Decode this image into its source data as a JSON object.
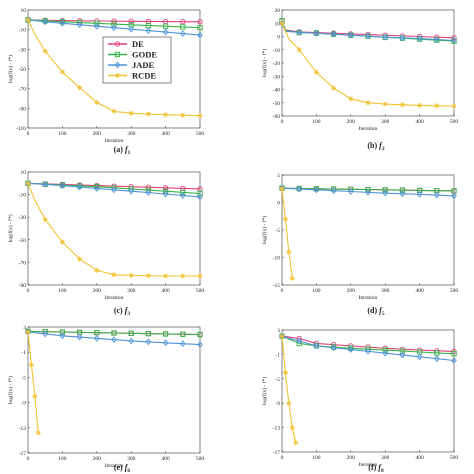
{
  "legend": [
    {
      "name": "DE",
      "color": "#e0417a",
      "marker": "circle"
    },
    {
      "name": "GODE",
      "color": "#36b34a",
      "marker": "square"
    },
    {
      "name": "JADE",
      "color": "#4f93d8",
      "marker": "diamond"
    },
    {
      "name": "RCDE",
      "color": "#f1c232",
      "marker": "star"
    }
  ],
  "chart_data": [
    {
      "type": "line",
      "caption_prefix": "(a) ",
      "caption_var": "f",
      "caption_sub": "1",
      "xlabel": "Iteration",
      "ylabel": "log(f(x) - f*)",
      "xlim": [
        0,
        500
      ],
      "ylim": [
        -110,
        10
      ],
      "xticks": [
        0,
        100,
        200,
        300,
        400,
        500
      ],
      "yticks": [
        10,
        -10,
        -30,
        -50,
        -70,
        -90,
        -110
      ],
      "series": [
        {
          "name": "DE",
          "x": [
            0,
            50,
            100,
            200,
            300,
            400,
            500
          ],
          "y": [
            0,
            -0.5,
            -0.8,
            -1.2,
            -1.5,
            -1.8,
            -2
          ]
        },
        {
          "name": "GODE",
          "x": [
            0,
            50,
            100,
            200,
            300,
            400,
            500
          ],
          "y": [
            0,
            -1,
            -2,
            -3.5,
            -5,
            -6.5,
            -8
          ]
        },
        {
          "name": "JADE",
          "x": [
            0,
            50,
            100,
            200,
            300,
            400,
            500
          ],
          "y": [
            0,
            -2,
            -3.5,
            -6.5,
            -9.5,
            -12.5,
            -15.5
          ]
        },
        {
          "name": "RCDE",
          "x": [
            0,
            20,
            50,
            100,
            150,
            200,
            250,
            300,
            400,
            500
          ],
          "y": [
            0,
            -15,
            -32,
            -53,
            -69,
            -84,
            -93,
            -95,
            -96.5,
            -97.5
          ]
        }
      ]
    },
    {
      "type": "line",
      "caption_prefix": "(b) ",
      "caption_var": "f",
      "caption_sub": "2",
      "xlabel": "Iteration",
      "ylabel": "log(f(x) - f*)",
      "xlim": [
        0,
        500
      ],
      "ylim": [
        -60,
        20
      ],
      "xticks": [
        0,
        100,
        200,
        300,
        400,
        500
      ],
      "yticks": [
        20,
        10,
        0,
        -10,
        -20,
        -30,
        -40,
        -50,
        -60
      ],
      "series": [
        {
          "name": "DE",
          "x": [
            0,
            10,
            50,
            100,
            200,
            300,
            400,
            500
          ],
          "y": [
            12,
            5,
            3.5,
            3,
            2,
            1,
            0,
            -1
          ]
        },
        {
          "name": "GODE",
          "x": [
            0,
            10,
            50,
            100,
            200,
            300,
            400,
            500
          ],
          "y": [
            12,
            4.5,
            3,
            2.5,
            1,
            -0.5,
            -2,
            -3.5
          ]
        },
        {
          "name": "JADE",
          "x": [
            0,
            10,
            50,
            100,
            200,
            300,
            400,
            500
          ],
          "y": [
            10,
            4,
            3,
            2.5,
            1,
            -0.5,
            -1.5,
            -3
          ]
        },
        {
          "name": "RCDE",
          "x": [
            0,
            20,
            50,
            100,
            150,
            200,
            250,
            300,
            400,
            500
          ],
          "y": [
            10,
            -2,
            -10,
            -27,
            -39,
            -47,
            -50,
            -51,
            -52,
            -52.5
          ]
        }
      ]
    },
    {
      "type": "line",
      "caption_prefix": "(c) ",
      "caption_var": "f",
      "caption_sub": "3",
      "xlabel": "Iteration",
      "ylabel": "log(f(x) - f*)",
      "xlim": [
        0,
        500
      ],
      "ylim": [
        -90,
        10
      ],
      "xticks": [
        0,
        100,
        200,
        300,
        400,
        500
      ],
      "yticks": [
        10,
        -10,
        -30,
        -50,
        -70,
        -90
      ],
      "series": [
        {
          "name": "DE",
          "x": [
            0,
            100,
            200,
            300,
            400,
            500
          ],
          "y": [
            0,
            -1,
            -2,
            -3,
            -4,
            -5
          ]
        },
        {
          "name": "GODE",
          "x": [
            0,
            100,
            200,
            300,
            400,
            500
          ],
          "y": [
            0,
            -1.5,
            -3,
            -5,
            -7,
            -9
          ]
        },
        {
          "name": "JADE",
          "x": [
            0,
            100,
            200,
            300,
            400,
            500
          ],
          "y": [
            0,
            -2,
            -4.5,
            -7,
            -9.5,
            -12
          ]
        },
        {
          "name": "RCDE",
          "x": [
            0,
            20,
            50,
            100,
            150,
            200,
            250,
            300,
            400,
            500
          ],
          "y": [
            0,
            -15,
            -32,
            -52,
            -67,
            -77,
            -81,
            -81.5,
            -82,
            -82
          ]
        }
      ]
    },
    {
      "type": "line",
      "caption_prefix": "(d) ",
      "caption_var": "f",
      "caption_sub": "5",
      "xlabel": "Iteration",
      "ylabel": "log(f(x) - f*)",
      "xlim": [
        0,
        500
      ],
      "ylim": [
        -15,
        5
      ],
      "xticks": [
        0,
        100,
        200,
        300,
        400,
        500
      ],
      "yticks": [
        5,
        0,
        -5,
        -10,
        -15
      ],
      "series": [
        {
          "name": "DE",
          "x": [
            0,
            100,
            200,
            300,
            400,
            500
          ],
          "y": [
            2.6,
            2.5,
            2.4,
            2.3,
            2.2,
            2.1
          ]
        },
        {
          "name": "GODE",
          "x": [
            0,
            100,
            200,
            300,
            400,
            500
          ],
          "y": [
            2.6,
            2.5,
            2.4,
            2.3,
            2.2,
            2.1
          ]
        },
        {
          "name": "JADE",
          "x": [
            0,
            100,
            200,
            300,
            400,
            500
          ],
          "y": [
            2.6,
            2.3,
            2,
            1.7,
            1.5,
            1.2
          ]
        },
        {
          "name": "RCDE",
          "x": [
            0,
            10,
            20,
            30
          ],
          "y": [
            2.5,
            -3,
            -9,
            -13.8
          ]
        }
      ]
    },
    {
      "type": "line",
      "caption_prefix": "(e) ",
      "caption_var": "f",
      "caption_sub": "6",
      "xlabel": "Iteration",
      "ylabel": "log(f(x) - f*)",
      "xlim": [
        0,
        500
      ],
      "ylim": [
        -17,
        3
      ],
      "xticks": [
        0,
        100,
        200,
        300,
        400,
        500
      ],
      "yticks": [
        3,
        -1,
        -5,
        -9,
        -13,
        -17
      ],
      "series": [
        {
          "name": "DE",
          "x": [
            0,
            100,
            200,
            300,
            400,
            500
          ],
          "y": [
            2.3,
            2.2,
            2.1,
            2.0,
            1.9,
            1.8
          ]
        },
        {
          "name": "GODE",
          "x": [
            0,
            100,
            200,
            300,
            400,
            500
          ],
          "y": [
            2.3,
            2.2,
            2.1,
            2.0,
            1.9,
            1.8
          ]
        },
        {
          "name": "JADE",
          "x": [
            0,
            100,
            200,
            300,
            400,
            500
          ],
          "y": [
            2.2,
            1.6,
            1.2,
            0.8,
            0.5,
            0.2
          ]
        },
        {
          "name": "RCDE",
          "x": [
            0,
            10,
            20,
            30
          ],
          "y": [
            2.2,
            -3,
            -8,
            -13.8
          ]
        }
      ]
    },
    {
      "type": "line",
      "caption_prefix": "(f) ",
      "caption_var": "f",
      "caption_sub": "8",
      "xlabel": "Iteration",
      "ylabel": "log(f(x) - f*)",
      "xlim": [
        0,
        500
      ],
      "ylim": [
        -17,
        3
      ],
      "xticks": [
        0,
        100,
        200,
        300,
        400,
        500
      ],
      "yticks": [
        3,
        -1,
        -5,
        -9,
        -13,
        -17
      ],
      "series": [
        {
          "name": "DE",
          "x": [
            0,
            50,
            100,
            200,
            300,
            400,
            500
          ],
          "y": [
            2.0,
            1.6,
            0.8,
            0.4,
            0.0,
            -0.3,
            -0.5
          ]
        },
        {
          "name": "GODE",
          "x": [
            0,
            50,
            100,
            200,
            300,
            400,
            500
          ],
          "y": [
            2.0,
            0.8,
            0.4,
            0.0,
            -0.3,
            -0.6,
            -0.9
          ]
        },
        {
          "name": "JADE",
          "x": [
            0,
            50,
            100,
            200,
            300,
            400,
            500
          ],
          "y": [
            2.0,
            1.2,
            0.4,
            -0.2,
            -0.8,
            -1.4,
            -2.0
          ]
        },
        {
          "name": "RCDE",
          "x": [
            0,
            10,
            20,
            30,
            40
          ],
          "y": [
            2.0,
            -4,
            -9,
            -13,
            -15.5
          ]
        }
      ]
    }
  ]
}
